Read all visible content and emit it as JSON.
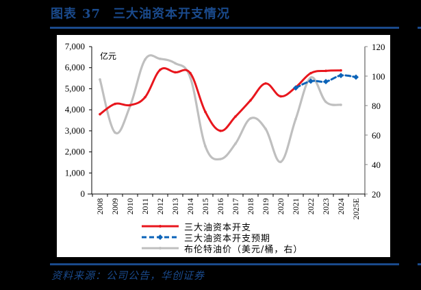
{
  "header": {
    "figure_label": "图表",
    "figure_number": "37",
    "title": "三大油资本开支情况"
  },
  "source": "资料来源：公司公告，华创证券",
  "colors": {
    "navy": "#1a4a8c",
    "capex": "#e8161d",
    "forecast": "#0b63b8",
    "brent": "#bfbfbf"
  },
  "chart_data": {
    "type": "line",
    "title": "三大油资本开支情况",
    "xlabel": "",
    "ylabel": "亿元",
    "ylabel_right": "美元/桶",
    "categories": [
      "2008",
      "2009",
      "2010",
      "2011",
      "2012",
      "2013",
      "2014",
      "2015",
      "2016",
      "2017",
      "2018",
      "2019",
      "2020",
      "2021",
      "2022",
      "2023",
      "2024",
      "2025E"
    ],
    "ylim": [
      0,
      7000
    ],
    "ylim_right": [
      20,
      120
    ],
    "yticks": [
      "0",
      "1,000",
      "2,000",
      "3,000",
      "4,000",
      "5,000",
      "6,000",
      "7,000"
    ],
    "yticks_right": [
      "20",
      "40",
      "60",
      "80",
      "100",
      "120"
    ],
    "grid": false,
    "legend_position": "bottom",
    "series": [
      {
        "name": "三大油资本开支",
        "axis": "left",
        "style": "solid",
        "values": [
          3790,
          4280,
          4220,
          4600,
          5900,
          5780,
          5740,
          3900,
          3000,
          3680,
          4450,
          5250,
          4640,
          5070,
          5740,
          5850,
          5870,
          null
        ]
      },
      {
        "name": "三大油资本开支预期",
        "axis": "left",
        "style": "dashed",
        "values": [
          null,
          null,
          null,
          null,
          null,
          null,
          null,
          null,
          null,
          null,
          null,
          null,
          null,
          5040,
          5360,
          5340,
          5630,
          5550
        ]
      },
      {
        "name": "布伦特油价（美元/桶，右）",
        "axis": "right",
        "style": "solid",
        "values": [
          97.7,
          61.7,
          79.6,
          111.3,
          111.7,
          108.7,
          99.0,
          52.4,
          43.7,
          54.2,
          71.3,
          64.2,
          41.8,
          70.9,
          99.0,
          82.5,
          80.5,
          null
        ]
      }
    ]
  },
  "axis": {
    "unit_left": "亿元"
  },
  "legend": [
    {
      "label": "三大油资本开支"
    },
    {
      "label": "三大油资本开支预期"
    },
    {
      "label": "布伦特油价（美元/桶，右）"
    }
  ]
}
